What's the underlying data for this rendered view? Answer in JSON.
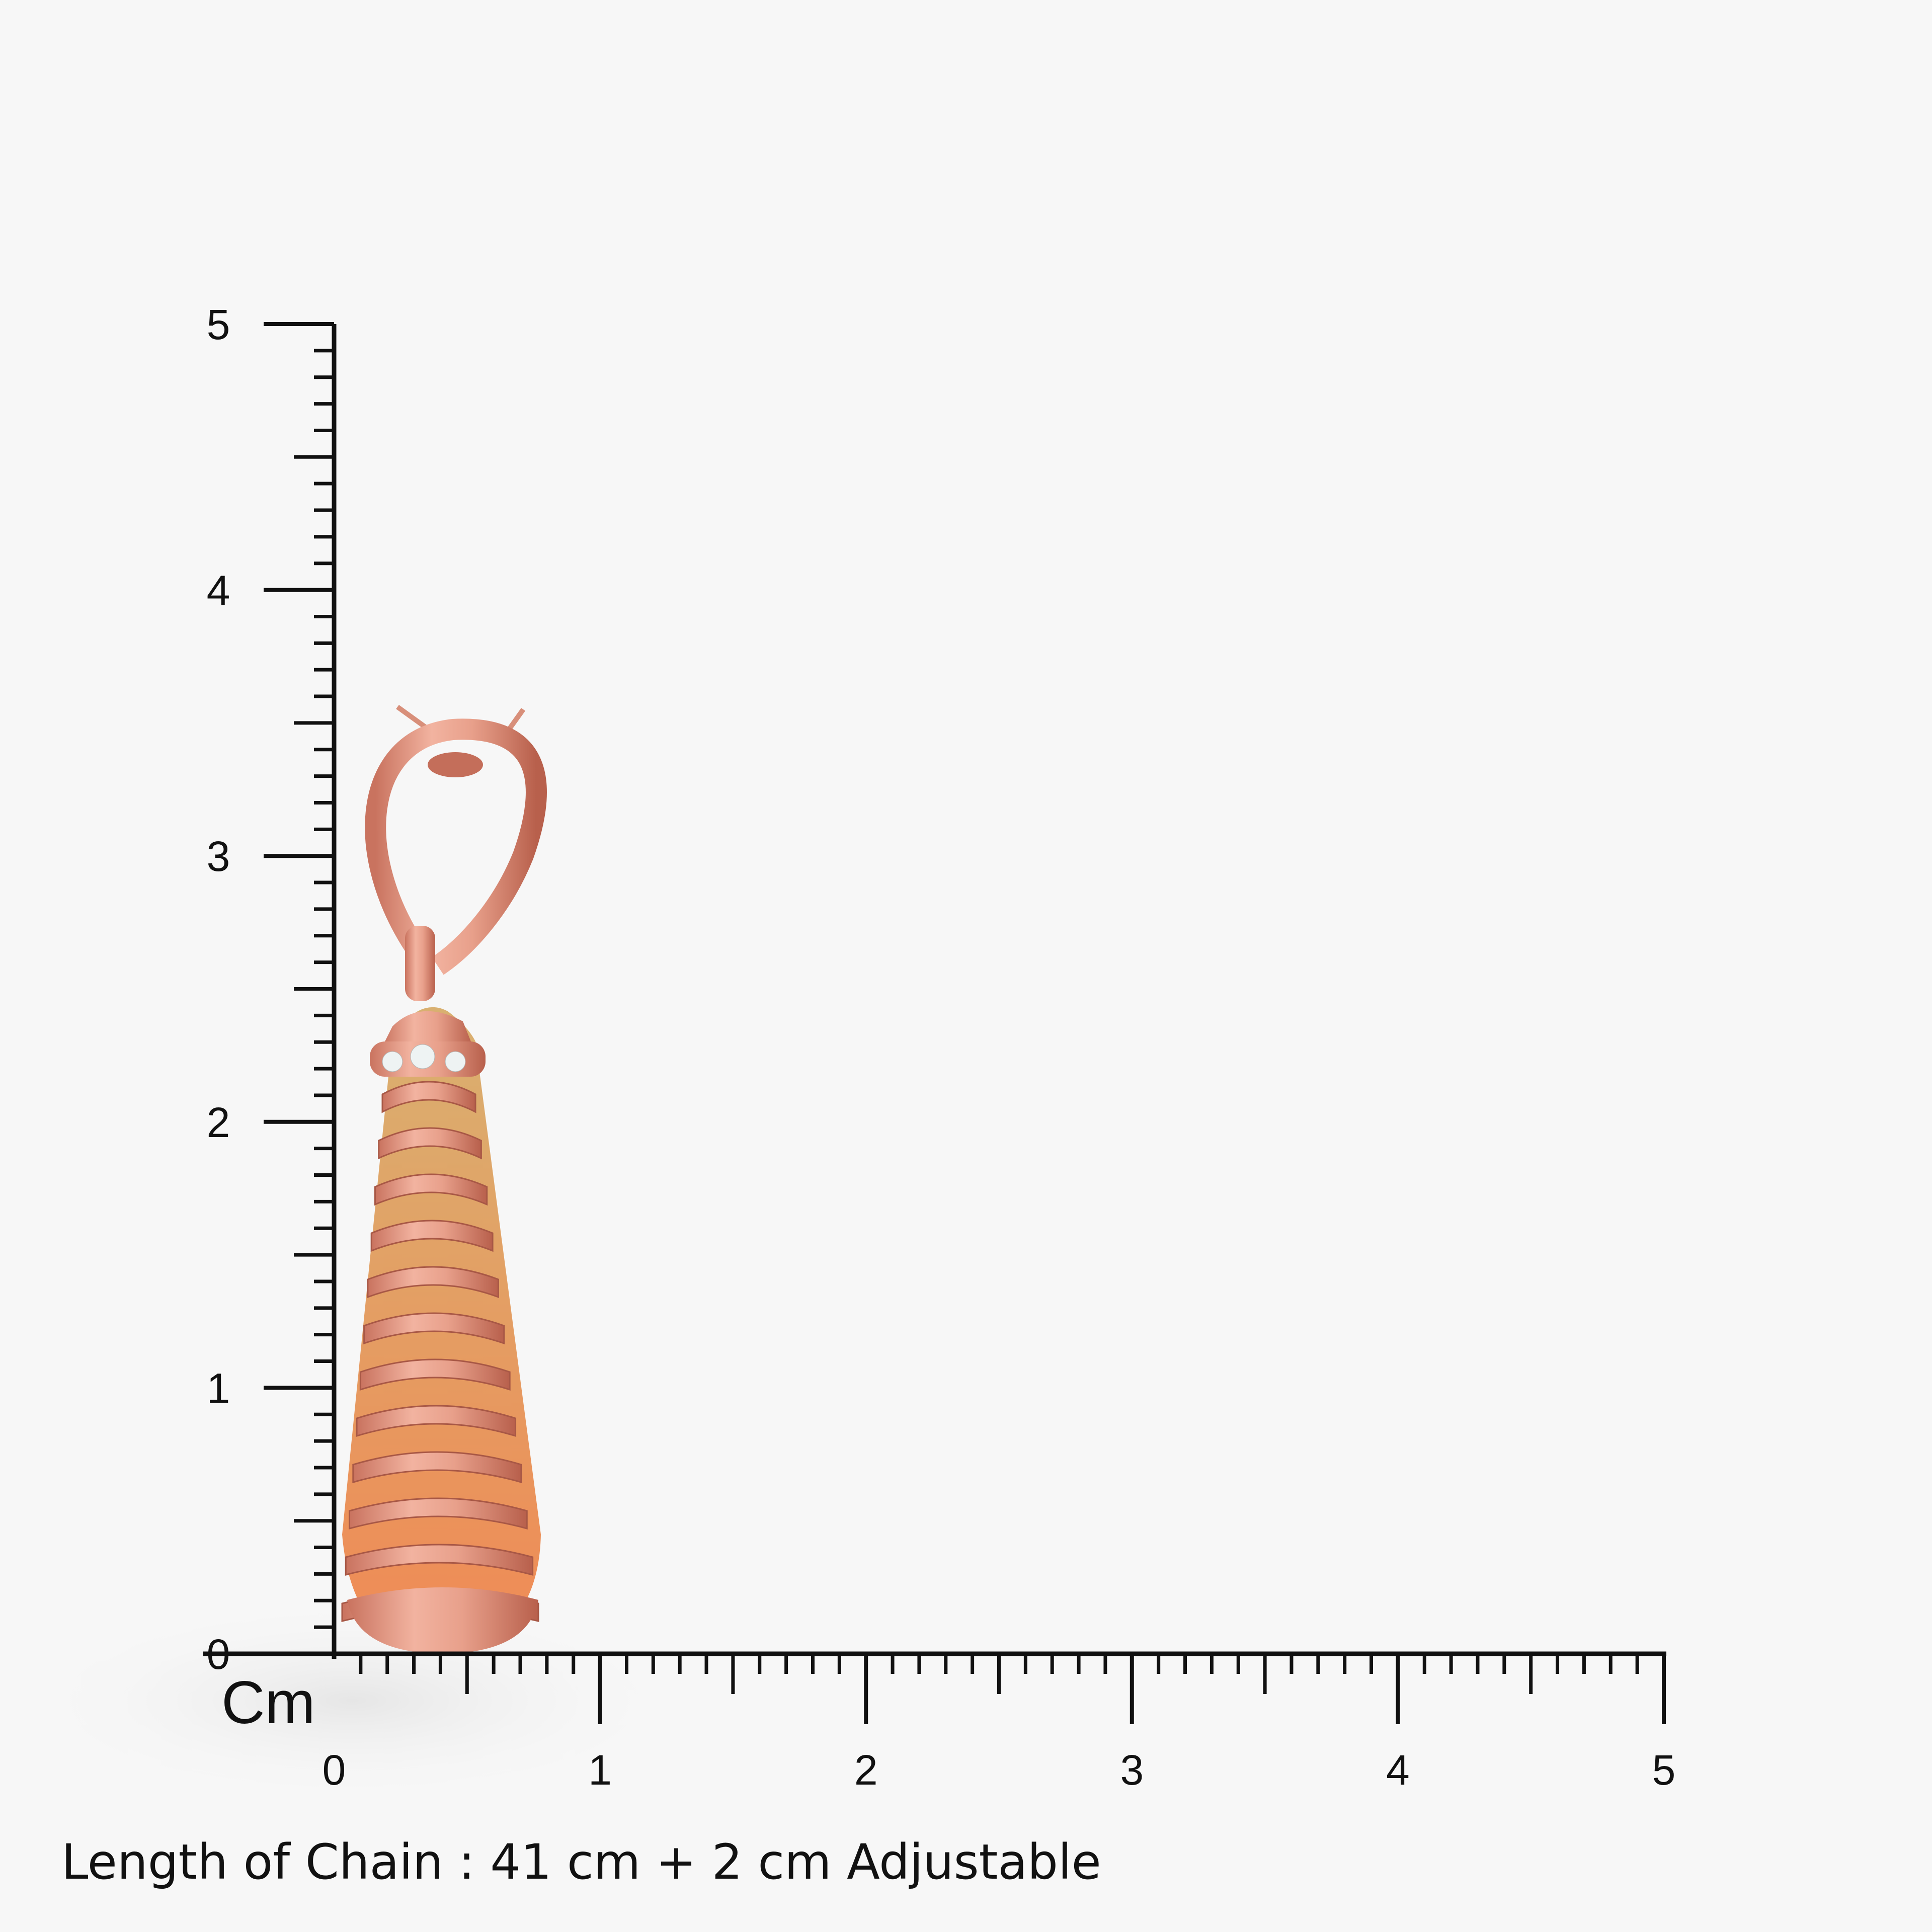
{
  "ruler": {
    "unit_label": "Cm",
    "x_ticks": [
      "0",
      "1",
      "2",
      "3",
      "4",
      "5"
    ],
    "y_ticks": [
      "0",
      "1",
      "2",
      "3",
      "4",
      "5"
    ],
    "subdivisions_per_unit": 10,
    "axis_color": "#111111"
  },
  "product": {
    "description_icon": "rose-gold-cage-drop-pendant",
    "metal_color": "#e39a86",
    "stone_color": "#f0b070"
  },
  "caption": "Length of Chain : 41 cm + 2 cm Adjustable"
}
